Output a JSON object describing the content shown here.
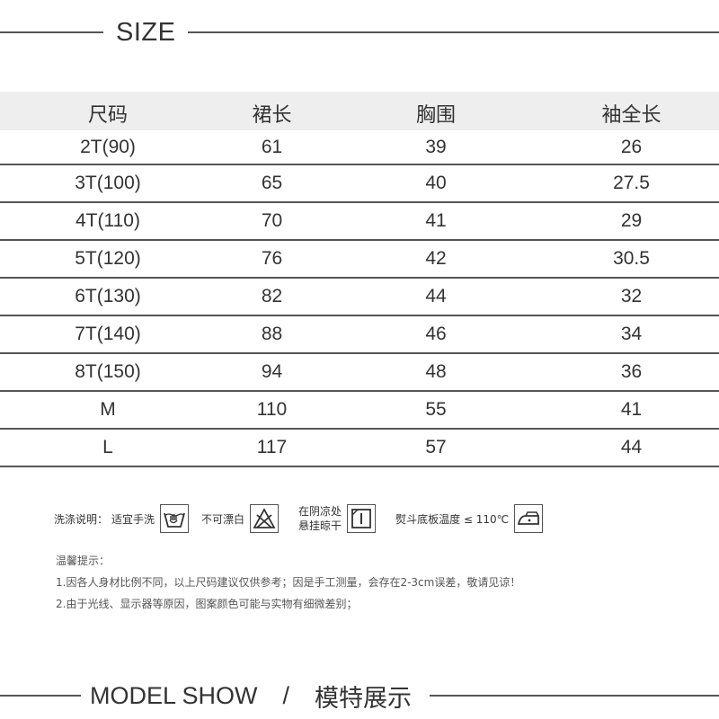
{
  "size_section": {
    "title": "SIZE"
  },
  "size_table": {
    "headers": [
      "尺码",
      "裙长",
      "胸围",
      "袖全长"
    ],
    "rows": [
      [
        "2T(90)",
        "61",
        "39",
        "26"
      ],
      [
        "3T(100)",
        "65",
        "40",
        "27.5"
      ],
      [
        "4T(110)",
        "70",
        "41",
        "29"
      ],
      [
        "5T(120)",
        "76",
        "42",
        "30.5"
      ],
      [
        "6T(130)",
        "82",
        "44",
        "32"
      ],
      [
        "7T(140)",
        "88",
        "46",
        "34"
      ],
      [
        "8T(150)",
        "94",
        "48",
        "36"
      ],
      [
        "M",
        "110",
        "55",
        "41"
      ],
      [
        "L",
        "117",
        "57",
        "44"
      ]
    ]
  },
  "care": {
    "label": "洗涤说明：",
    "items": [
      {
        "text": "适宜手洗",
        "icon": "hand-wash-icon"
      },
      {
        "text": "不可漂白",
        "icon": "no-bleach-icon"
      },
      {
        "text_line1": "在阴凉处",
        "text_line2": "悬挂晾干",
        "icon": "line-dry-shade-icon"
      },
      {
        "text": "熨斗底板温度 ≤ 110℃",
        "icon": "iron-icon"
      }
    ]
  },
  "notes": {
    "title": "温馨提示：",
    "lines": [
      "1.因各人身材比例不同，以上尺码建议仅供参考；因是手工测量，会存在2-3cm误差，敬请见谅！",
      "2.由于光线、显示器等原因，图案颜色可能与实物有细微差别；"
    ]
  },
  "model_section": {
    "title_en": "MODEL SHOW",
    "separator": "/",
    "title_cn": "模特展示"
  }
}
